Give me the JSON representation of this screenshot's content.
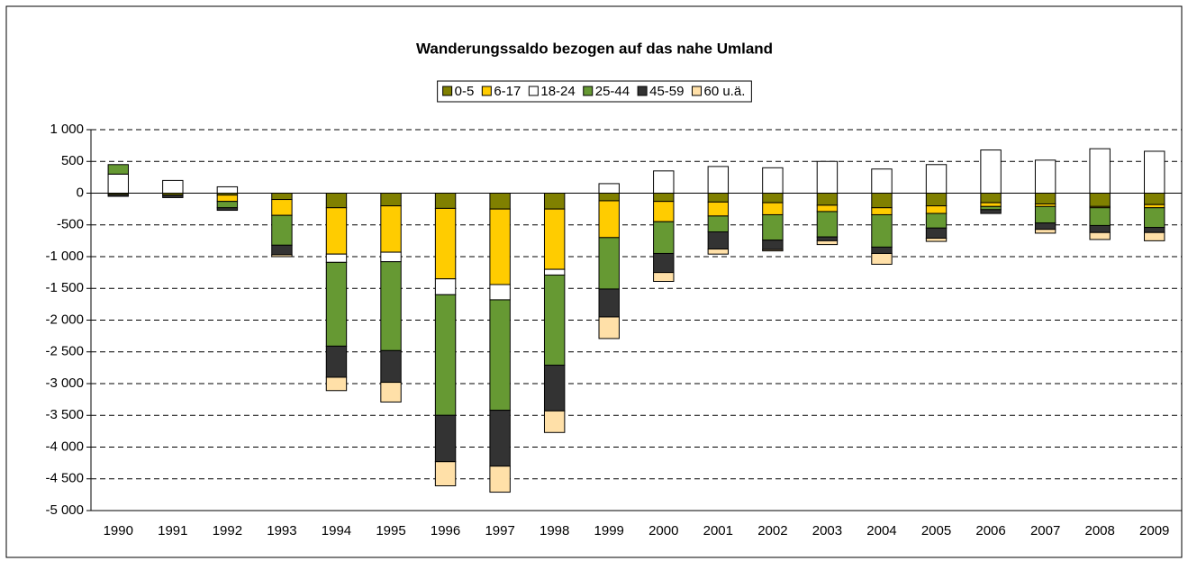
{
  "chart_data": {
    "type": "stacked_bar",
    "title": "Wanderungssaldo bezogen auf das nahe Umland",
    "categories": [
      "1990",
      "1991",
      "1992",
      "1993",
      "1994",
      "1995",
      "1996",
      "1997",
      "1998",
      "1999",
      "2000",
      "2001",
      "2002",
      "2003",
      "2004",
      "2005",
      "2006",
      "2007",
      "2008",
      "2009"
    ],
    "series": [
      {
        "name": "0-5",
        "color": "#808000",
        "values": [
          -20,
          -30,
          -30,
          -100,
          -230,
          -200,
          -240,
          -250,
          -250,
          -120,
          -130,
          -140,
          -150,
          -190,
          -230,
          -200,
          -150,
          -170,
          -210,
          -180
        ]
      },
      {
        "name": "6-17",
        "color": "#ffcc00",
        "values": [
          0,
          0,
          -100,
          -250,
          -730,
          -730,
          -1110,
          -1190,
          -950,
          -580,
          -320,
          -220,
          -190,
          -100,
          -110,
          -120,
          -60,
          -40,
          -20,
          -50
        ]
      },
      {
        "name": "18-24",
        "color": "#ffffff",
        "values": [
          300,
          200,
          100,
          0,
          -130,
          -150,
          -250,
          -240,
          -90,
          150,
          350,
          420,
          400,
          500,
          380,
          450,
          680,
          520,
          700,
          660
        ]
      },
      {
        "name": "25-44",
        "color": "#669933",
        "values": [
          150,
          0,
          -100,
          -470,
          -1320,
          -1400,
          -1900,
          -1740,
          -1420,
          -810,
          -500,
          -250,
          -400,
          -400,
          -510,
          -230,
          -50,
          -260,
          -280,
          -310
        ]
      },
      {
        "name": "45-59",
        "color": "#333333",
        "values": [
          -30,
          -40,
          -40,
          -150,
          -490,
          -500,
          -730,
          -880,
          -720,
          -440,
          -300,
          -270,
          -150,
          -60,
          -100,
          -160,
          -60,
          -100,
          -110,
          -80
        ]
      },
      {
        "name": "60 u.ä.",
        "color": "#ffe0a8",
        "values": [
          0,
          0,
          0,
          -30,
          -210,
          -310,
          -380,
          -410,
          -340,
          -340,
          -140,
          -80,
          -20,
          -60,
          -170,
          -50,
          0,
          -60,
          -110,
          -130
        ]
      }
    ],
    "ylim": [
      -5000,
      1000
    ],
    "yticks": [
      {
        "value": -5000,
        "label": "-5 000"
      },
      {
        "value": -4500,
        "label": "-4 500"
      },
      {
        "value": -4000,
        "label": "-4 000"
      },
      {
        "value": -3500,
        "label": "-3 500"
      },
      {
        "value": -3000,
        "label": "-3 000"
      },
      {
        "value": -2500,
        "label": "-2 500"
      },
      {
        "value": -2000,
        "label": "-2 000"
      },
      {
        "value": -1500,
        "label": "-1 500"
      },
      {
        "value": -1000,
        "label": "-1 000"
      },
      -500,
      0,
      500,
      {
        "value": 1000,
        "label": "1 000"
      }
    ],
    "grid": true,
    "legend": "top"
  }
}
